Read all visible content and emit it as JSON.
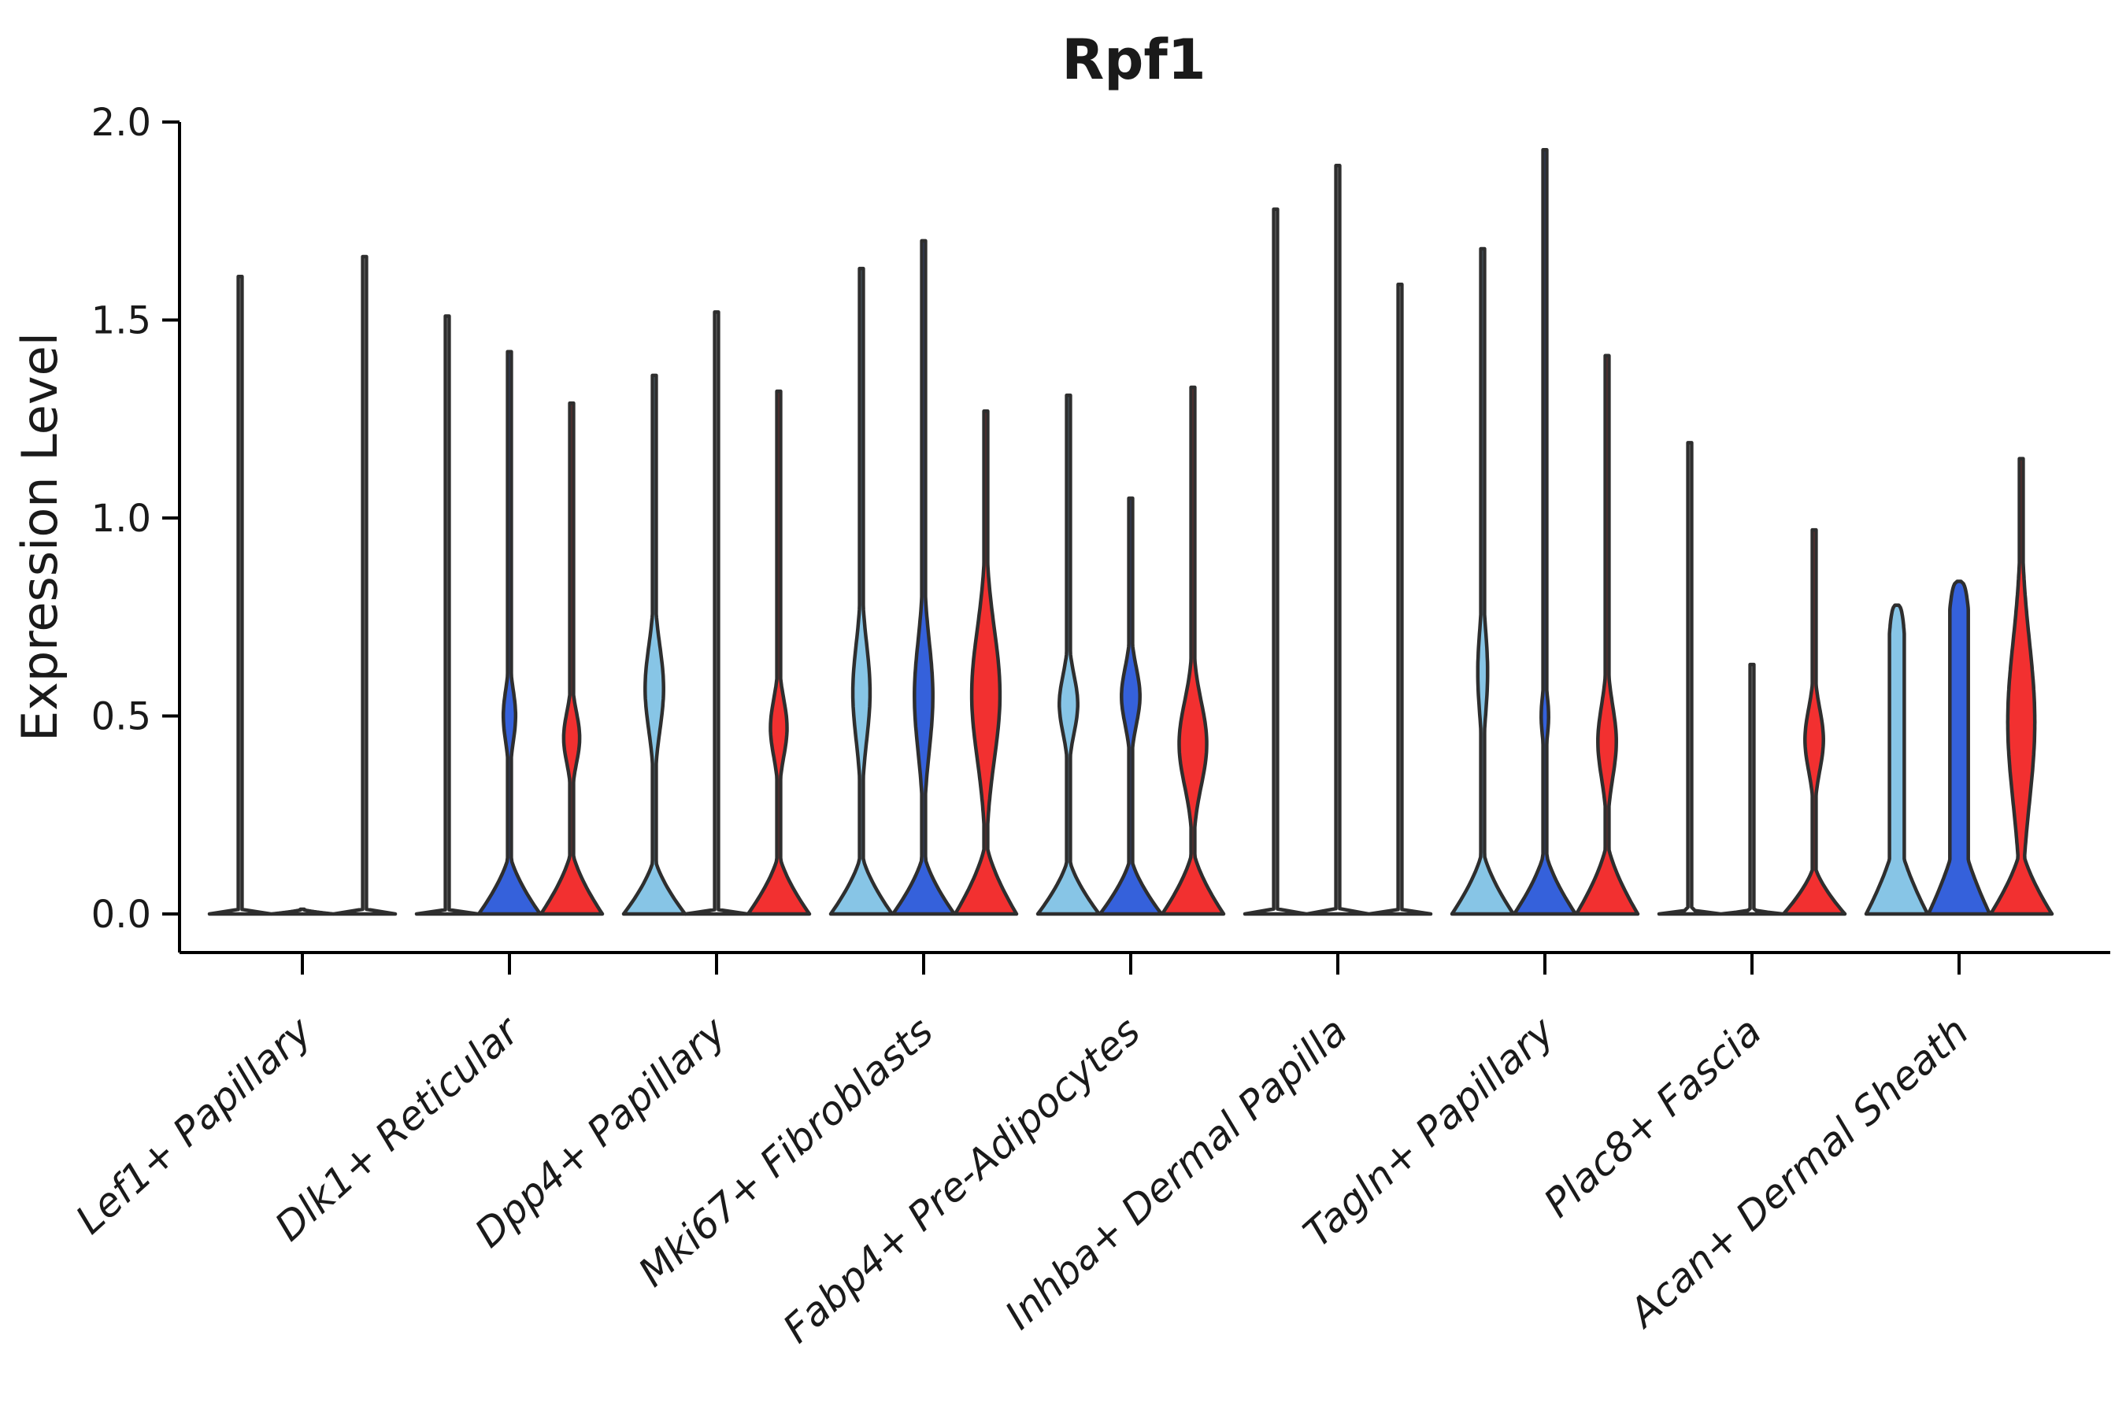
{
  "chart_data": {
    "type": "violin",
    "title": "Rpf1",
    "ylabel": "Expression Level",
    "xlabel": "",
    "ylim": [
      0.0,
      2.0
    ],
    "y_ticks": [
      0.0,
      0.5,
      1.0,
      1.5,
      2.0
    ],
    "y_tick_labels": [
      "0.0",
      "0.5",
      "1.0",
      "1.5",
      "2.0"
    ],
    "grid": false,
    "legend": "none",
    "x_tick_rotation_deg": 42,
    "series_order": [
      "lightblue",
      "blue",
      "red"
    ],
    "colors": {
      "lightblue": "#87C5E6",
      "blue": "#3561DB",
      "red": "#F23030",
      "outline": "#2E2E2E",
      "axis": "#000000"
    },
    "categories": [
      "Lef1+ Papillary",
      "Dlk1+ Reticular",
      "Dpp4+ Papillary",
      "Mki67+ Fibroblasts",
      "Fabp4+ Pre-Adipocytes",
      "Inhba+ Dermal Papilla",
      "Tagln+ Papillary",
      "Plac8+ Fascia",
      "Acan+ Dermal Sheath"
    ],
    "groups": [
      {
        "label": "Lef1+ Papillary",
        "violins": [
          {
            "series": "lightblue",
            "max": 1.61,
            "baseTop": 0.012
          },
          {
            "series": "blue",
            "max": 0.0,
            "baseTop": 0.012
          },
          {
            "series": "red",
            "max": 1.66,
            "baseTop": 0.012
          }
        ]
      },
      {
        "label": "Dlk1+ Reticular",
        "violins": [
          {
            "series": "lightblue",
            "max": 1.51,
            "baseTop": 0.012
          },
          {
            "series": "blue",
            "max": 1.42,
            "baseTop": 0.16,
            "bulge": {
              "lo": 0.38,
              "hi": 0.62,
              "half": 0.2
            }
          },
          {
            "series": "red",
            "max": 1.29,
            "baseTop": 0.17,
            "bulge": {
              "lo": 0.33,
              "hi": 0.56,
              "half": 0.26
            }
          }
        ]
      },
      {
        "label": "Dpp4+ Papillary",
        "violins": [
          {
            "series": "lightblue",
            "max": 1.36,
            "baseTop": 0.15,
            "bulge": {
              "lo": 0.38,
              "hi": 0.76,
              "half": 0.3
            }
          },
          {
            "series": "blue",
            "max": 1.52,
            "baseTop": 0.012
          },
          {
            "series": "red",
            "max": 1.32,
            "baseTop": 0.16,
            "bulge": {
              "lo": 0.34,
              "hi": 0.6,
              "half": 0.27
            }
          }
        ]
      },
      {
        "label": "Mki67+ Fibroblasts",
        "violins": [
          {
            "series": "lightblue",
            "max": 1.63,
            "baseTop": 0.16,
            "bulge": {
              "lo": 0.34,
              "hi": 0.78,
              "half": 0.28
            }
          },
          {
            "series": "blue",
            "max": 1.7,
            "baseTop": 0.16,
            "bulge": {
              "lo": 0.3,
              "hi": 0.8,
              "half": 0.3
            }
          },
          {
            "series": "red",
            "max": 1.27,
            "baseTop": 0.19,
            "bulge": {
              "lo": 0.26,
              "hi": 0.85,
              "half": 0.46
            }
          }
        ]
      },
      {
        "label": "Fabp4+ Pre-Adipocytes",
        "violins": [
          {
            "series": "lightblue",
            "max": 1.31,
            "baseTop": 0.15,
            "bulge": {
              "lo": 0.4,
              "hi": 0.66,
              "half": 0.3
            }
          },
          {
            "series": "blue",
            "max": 1.05,
            "baseTop": 0.15,
            "bulge": {
              "lo": 0.42,
              "hi": 0.68,
              "half": 0.3
            }
          },
          {
            "series": "red",
            "max": 1.33,
            "baseTop": 0.17,
            "bulge": {
              "lo": 0.24,
              "hi": 0.62,
              "half": 0.45
            }
          }
        ]
      },
      {
        "label": "Inhba+ Dermal Papilla",
        "violins": [
          {
            "series": "lightblue",
            "max": 1.78,
            "baseTop": 0.012
          },
          {
            "series": "blue",
            "max": 1.89,
            "baseTop": 0.012
          },
          {
            "series": "red",
            "max": 1.59,
            "baseTop": 0.012
          }
        ]
      },
      {
        "label": "Tagln+ Papillary",
        "violins": [
          {
            "series": "lightblue",
            "max": 1.68,
            "baseTop": 0.17,
            "bulge": {
              "lo": 0.42,
              "hi": 0.8,
              "half": 0.16
            }
          },
          {
            "series": "blue",
            "max": 1.93,
            "baseTop": 0.17,
            "bulge": {
              "lo": 0.4,
              "hi": 0.6,
              "half": 0.12
            }
          },
          {
            "series": "red",
            "max": 1.41,
            "baseTop": 0.19,
            "bulge": {
              "lo": 0.27,
              "hi": 0.6,
              "half": 0.3
            }
          }
        ]
      },
      {
        "label": "Plac8+ Fascia",
        "violins": [
          {
            "series": "lightblue",
            "max": 1.19,
            "baseTop": 0.012
          },
          {
            "series": "blue",
            "max": 0.63,
            "baseTop": 0.012
          },
          {
            "series": "red",
            "max": 0.97,
            "baseTop": 0.13,
            "bulge": {
              "lo": 0.3,
              "hi": 0.58,
              "half": 0.3
            }
          }
        ]
      },
      {
        "label": "Acan+ Dermal Sheath",
        "violins": [
          {
            "series": "lightblue",
            "max": 0.78,
            "baseTop": 0.22,
            "column": {
              "top": 0.78,
              "half": 0.24
            }
          },
          {
            "series": "blue",
            "max": 0.84,
            "baseTop": 0.24,
            "column": {
              "top": 0.84,
              "half": 0.3
            }
          },
          {
            "series": "red",
            "max": 1.15,
            "baseTop": 0.18,
            "bulge": {
              "lo": 0.12,
              "hi": 0.85,
              "half": 0.44
            }
          }
        ]
      }
    ]
  }
}
